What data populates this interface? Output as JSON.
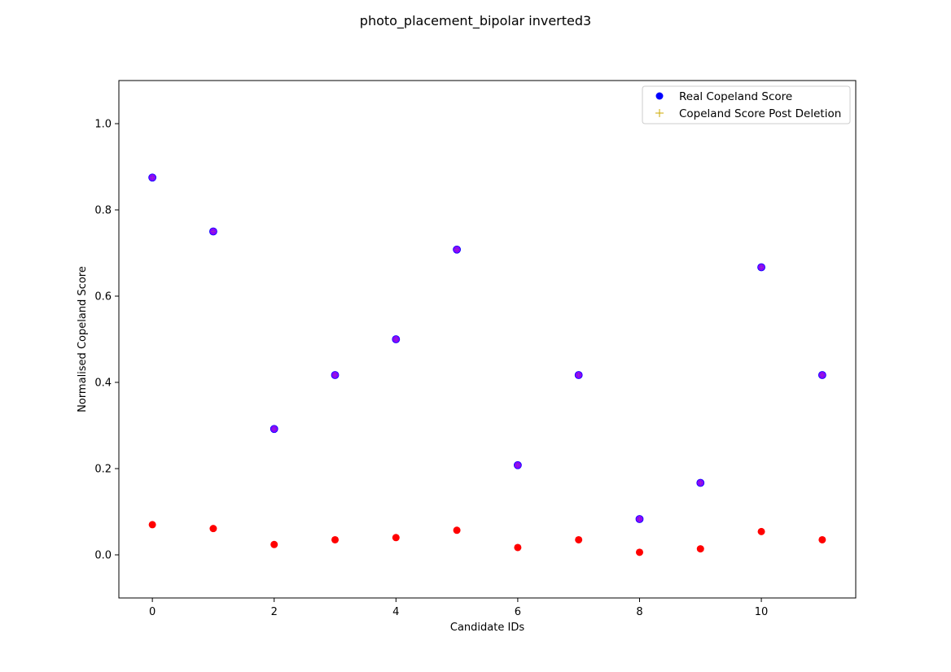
{
  "chart_data": {
    "type": "scatter",
    "title": "photo_placement_bipolar inverted3",
    "xlabel": "Candidate IDs",
    "ylabel": "Normalised Copeland Score",
    "xlim": [
      -0.55,
      11.55
    ],
    "ylim": [
      -0.1,
      1.1
    ],
    "xticks": [
      0,
      2,
      4,
      6,
      8,
      10
    ],
    "yticks": [
      0.0,
      0.2,
      0.4,
      0.6,
      0.8,
      1.0
    ],
    "x": [
      0,
      1,
      2,
      3,
      4,
      5,
      6,
      7,
      8,
      9,
      10,
      11
    ],
    "series": [
      {
        "name": "Real Copeland Score",
        "marker": "circle",
        "color": "#0000ff",
        "values": [
          0.875,
          0.75,
          0.292,
          0.417,
          0.5,
          0.708,
          0.208,
          0.417,
          0.083,
          0.167,
          0.667,
          0.417
        ]
      },
      {
        "name": "Copeland Score Post Deletion",
        "marker": "plus",
        "color": "#ccaa00",
        "values": [
          0.875,
          0.75,
          0.292,
          0.417,
          0.5,
          0.708,
          0.208,
          0.417,
          0.083,
          0.167,
          0.667,
          0.417
        ]
      }
    ],
    "overlay_color": "#8800ff",
    "extra_points": {
      "color": "#ff0000",
      "values": [
        0.07,
        0.061,
        0.024,
        0.035,
        0.04,
        0.057,
        0.017,
        0.035,
        0.006,
        0.014,
        0.054,
        0.035
      ]
    },
    "legend_position": "top-right",
    "grid": false
  }
}
